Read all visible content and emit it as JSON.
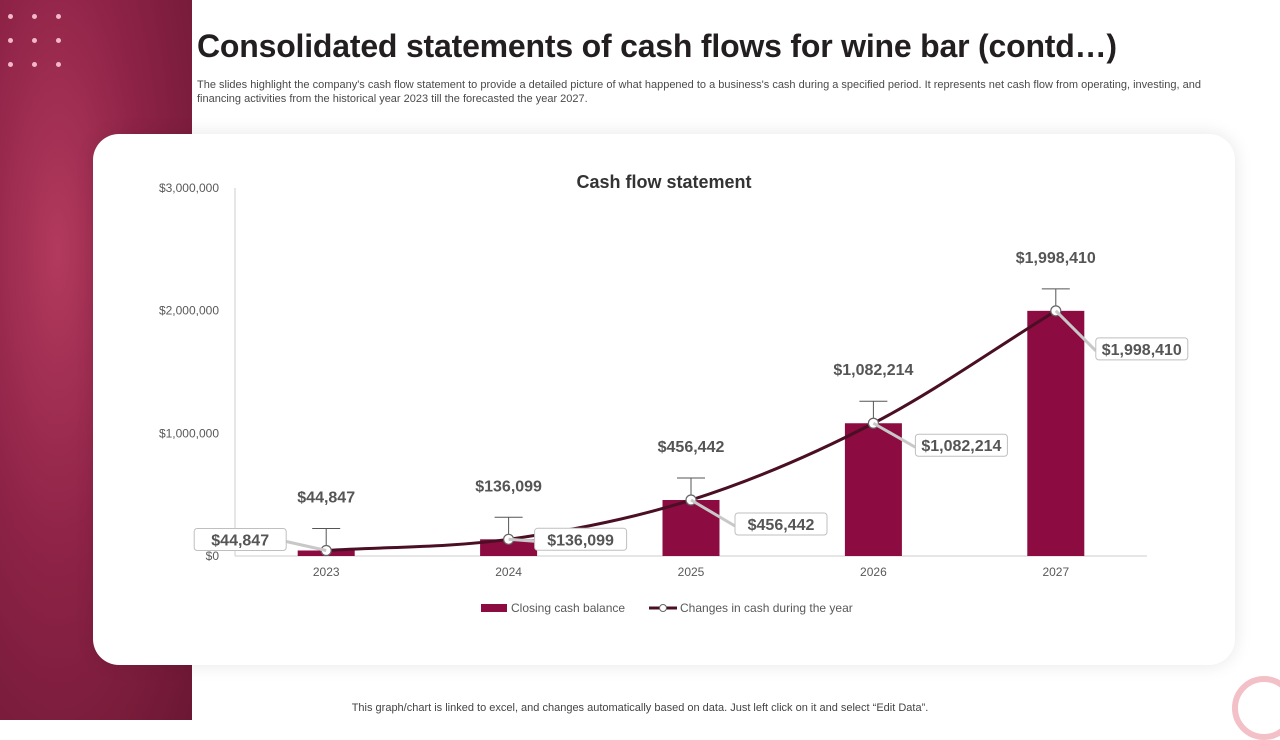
{
  "slide": {
    "title": "Consolidated statements of cash flows for wine bar (contd…)",
    "subtitle": "The slides highlight the company's cash flow statement to provide a detailed picture of what happened to a business's cash during a specified period. It represents net cash flow from operating, investing, and financing activities from the historical year 2023 till the forecasted the year 2027.",
    "footnote": "This graph/chart is linked to excel,  and changes automatically based on data. Just left click on it and select “Edit Data”."
  },
  "colors": {
    "bar": "#8c0b40",
    "line": "#4a0f24",
    "accent_band": "#8e2347",
    "label_text": "#555555"
  },
  "chart_data": {
    "type": "bar",
    "title": "Cash flow statement",
    "categories": [
      "2023",
      "2024",
      "2025",
      "2026",
      "2027"
    ],
    "series": [
      {
        "name": "Closing cash balance",
        "type": "bar",
        "values": [
          44847,
          136099,
          456442,
          1082214,
          1998410
        ],
        "labels": [
          "$44,847",
          "$136,099",
          "$456,442",
          "$1,082,214",
          "$1,998,410"
        ]
      },
      {
        "name": "Changes in cash during the year",
        "type": "line",
        "values": [
          44847,
          136099,
          456442,
          1082214,
          1998410
        ],
        "labels": [
          "$44,847",
          "$136,099",
          "$456,442",
          "$1,082,214",
          "$1,998,410"
        ]
      }
    ],
    "ylim": [
      0,
      3000000
    ],
    "yticks": [
      0,
      1000000,
      2000000,
      3000000
    ],
    "ytick_labels": [
      "$0",
      "$1,000,000",
      "$2,000,000",
      "$3,000,000"
    ],
    "xlabel": "",
    "ylabel": "",
    "grid": false,
    "legend": "bottom"
  }
}
